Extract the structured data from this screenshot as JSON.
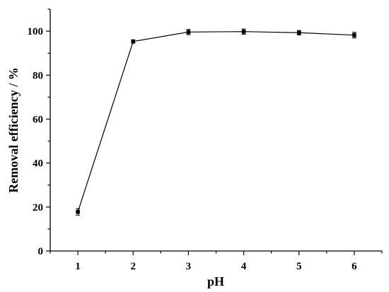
{
  "chart_data": {
    "type": "line",
    "xlabel": "pH",
    "ylabel": "Removal efficiency / %",
    "xlim": [
      0.5,
      6.5
    ],
    "ylim": [
      0,
      110
    ],
    "x_ticks": [
      "1",
      "2",
      "3",
      "4",
      "5",
      "6"
    ],
    "y_ticks": [
      "0",
      "20",
      "40",
      "60",
      "80",
      "100"
    ],
    "grid": false,
    "legend": "none",
    "series": [
      {
        "x": [
          1,
          2,
          3,
          4,
          5,
          6
        ],
        "values": [
          17.8,
          95.3,
          99.6,
          99.8,
          99.3,
          98.2
        ],
        "error": [
          1.5,
          0.8,
          1.2,
          1.2,
          1.0,
          1.3
        ],
        "marker": "square",
        "color": "#000000"
      }
    ]
  }
}
